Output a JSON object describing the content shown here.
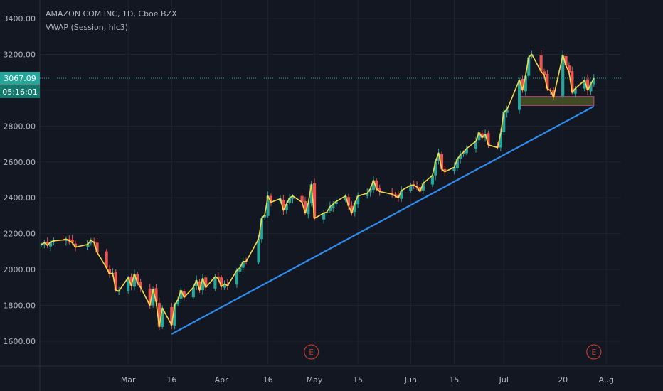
{
  "colors": {
    "background": "#131722",
    "grid": "#1f2330",
    "axis_text": "#b2b5be",
    "up": "#26a69a",
    "down": "#ef5350",
    "vwap": "#f5d94c",
    "trendline": "#2e8ef0",
    "earnings": "#c0392b",
    "price_line": "#26a69a",
    "box_border": "#b0457a",
    "box_fill": "rgba(120,140,40,0.45)"
  },
  "legend": {
    "symbol": "AMAZON COM INC, 1D, Cboe BZX",
    "indicator": "VWAP (Session, hlc3)"
  },
  "price_tag": {
    "value": "3067.09",
    "countdown": "05:16:01"
  },
  "earnings_marker": {
    "label": "E",
    "dates": [
      "2020-04-30",
      "2020-07-30"
    ]
  },
  "chart_data": {
    "type": "candlestick",
    "title": "AMAZON COM INC, 1D, Cboe BZX",
    "indicator": "VWAP (Session, hlc3)",
    "ylim": [
      1500,
      3450
    ],
    "xlim": [
      "2020-02-03",
      "2020-08-05"
    ],
    "grid": true,
    "y_ticks": [
      "1600.00",
      "1800.00",
      "2000.00",
      "2200.00",
      "2400.00",
      "2600.00",
      "2800.00",
      "3000.00",
      "3200.00",
      "3400.00"
    ],
    "x_ticks": [
      {
        "label": "Mar",
        "date": "2020-03-02"
      },
      {
        "label": "16",
        "date": "2020-03-16"
      },
      {
        "label": "Apr",
        "date": "2020-04-01"
      },
      {
        "label": "16",
        "date": "2020-04-16"
      },
      {
        "label": "May",
        "date": "2020-05-01"
      },
      {
        "label": "15",
        "date": "2020-05-15"
      },
      {
        "label": "Jun",
        "date": "2020-06-01"
      },
      {
        "label": "15",
        "date": "2020-06-15"
      },
      {
        "label": "Jul",
        "date": "2020-07-01"
      },
      {
        "label": "20",
        "date": "2020-07-20"
      },
      {
        "label": "Aug",
        "date": "2020-08-03"
      }
    ],
    "closes": [
      [
        "2020-02-03",
        2140
      ],
      [
        "2020-02-04",
        2150
      ],
      [
        "2020-02-05",
        2135
      ],
      [
        "2020-02-06",
        2155
      ],
      [
        "2020-02-07",
        2160
      ],
      [
        "2020-02-10",
        2165
      ],
      [
        "2020-02-11",
        2170
      ],
      [
        "2020-02-12",
        2160
      ],
      [
        "2020-02-13",
        2150
      ],
      [
        "2020-02-14",
        2125
      ],
      [
        "2020-02-18",
        2140
      ],
      [
        "2020-02-19",
        2165
      ],
      [
        "2020-02-20",
        2150
      ],
      [
        "2020-02-21",
        2095
      ],
      [
        "2020-02-24",
        2010
      ],
      [
        "2020-02-25",
        1975
      ],
      [
        "2020-02-26",
        1980
      ],
      [
        "2020-02-27",
        1885
      ],
      [
        "2020-02-28",
        1880
      ],
      [
        "2020-03-02",
        1955
      ],
      [
        "2020-03-03",
        1910
      ],
      [
        "2020-03-04",
        1975
      ],
      [
        "2020-03-05",
        1925
      ],
      [
        "2020-03-06",
        1900
      ],
      [
        "2020-03-09",
        1800
      ],
      [
        "2020-03-10",
        1890
      ],
      [
        "2020-03-11",
        1820
      ],
      [
        "2020-03-12",
        1680
      ],
      [
        "2020-03-13",
        1785
      ],
      [
        "2020-03-16",
        1690
      ],
      [
        "2020-03-17",
        1805
      ],
      [
        "2020-03-18",
        1830
      ],
      [
        "2020-03-19",
        1885
      ],
      [
        "2020-03-20",
        1845
      ],
      [
        "2020-03-23",
        1900
      ],
      [
        "2020-03-24",
        1940
      ],
      [
        "2020-03-25",
        1885
      ],
      [
        "2020-03-26",
        1950
      ],
      [
        "2020-03-27",
        1900
      ],
      [
        "2020-03-30",
        1960
      ],
      [
        "2020-03-31",
        1950
      ],
      [
        "2020-04-01",
        1905
      ],
      [
        "2020-04-02",
        1920
      ],
      [
        "2020-04-03",
        1910
      ],
      [
        "2020-04-06",
        1995
      ],
      [
        "2020-04-07",
        2010
      ],
      [
        "2020-04-08",
        2045
      ],
      [
        "2020-04-09",
        2045
      ],
      [
        "2020-04-13",
        2170
      ],
      [
        "2020-04-14",
        2285
      ],
      [
        "2020-04-15",
        2305
      ],
      [
        "2020-04-16",
        2410
      ],
      [
        "2020-04-17",
        2375
      ],
      [
        "2020-04-20",
        2395
      ],
      [
        "2020-04-21",
        2330
      ],
      [
        "2020-04-22",
        2365
      ],
      [
        "2020-04-23",
        2400
      ],
      [
        "2020-04-24",
        2410
      ],
      [
        "2020-04-27",
        2375
      ],
      [
        "2020-04-28",
        2315
      ],
      [
        "2020-04-29",
        2370
      ],
      [
        "2020-04-30",
        2475
      ],
      [
        "2020-05-01",
        2285
      ],
      [
        "2020-05-04",
        2315
      ],
      [
        "2020-05-05",
        2320
      ],
      [
        "2020-05-06",
        2350
      ],
      [
        "2020-05-07",
        2365
      ],
      [
        "2020-05-08",
        2380
      ],
      [
        "2020-05-11",
        2410
      ],
      [
        "2020-05-12",
        2355
      ],
      [
        "2020-05-13",
        2315
      ],
      [
        "2020-05-14",
        2370
      ],
      [
        "2020-05-15",
        2410
      ],
      [
        "2020-05-18",
        2425
      ],
      [
        "2020-05-19",
        2450
      ],
      [
        "2020-05-20",
        2497
      ],
      [
        "2020-05-21",
        2450
      ],
      [
        "2020-05-22",
        2435
      ],
      [
        "2020-05-26",
        2420
      ],
      [
        "2020-05-27",
        2410
      ],
      [
        "2020-05-28",
        2400
      ],
      [
        "2020-05-29",
        2440
      ],
      [
        "2020-06-01",
        2470
      ],
      [
        "2020-06-02",
        2470
      ],
      [
        "2020-06-03",
        2460
      ],
      [
        "2020-06-04",
        2435
      ],
      [
        "2020-06-05",
        2480
      ],
      [
        "2020-06-08",
        2525
      ],
      [
        "2020-06-09",
        2600
      ],
      [
        "2020-06-10",
        2650
      ],
      [
        "2020-06-11",
        2560
      ],
      [
        "2020-06-12",
        2545
      ],
      [
        "2020-06-15",
        2570
      ],
      [
        "2020-06-16",
        2615
      ],
      [
        "2020-06-17",
        2640
      ],
      [
        "2020-06-18",
        2655
      ],
      [
        "2020-06-19",
        2675
      ],
      [
        "2020-06-22",
        2715
      ],
      [
        "2020-06-23",
        2765
      ],
      [
        "2020-06-24",
        2735
      ],
      [
        "2020-06-25",
        2755
      ],
      [
        "2020-06-26",
        2695
      ],
      [
        "2020-06-29",
        2680
      ],
      [
        "2020-06-30",
        2760
      ],
      [
        "2020-07-01",
        2880
      ],
      [
        "2020-07-02",
        2890
      ],
      [
        "2020-07-06",
        3057
      ],
      [
        "2020-07-07",
        3000
      ],
      [
        "2020-07-08",
        3080
      ],
      [
        "2020-07-09",
        3183
      ],
      [
        "2020-07-10",
        3200
      ],
      [
        "2020-07-13",
        3105
      ],
      [
        "2020-07-14",
        3085
      ],
      [
        "2020-07-15",
        3008
      ],
      [
        "2020-07-16",
        2999
      ],
      [
        "2020-07-17",
        2961
      ],
      [
        "2020-07-20",
        3196
      ],
      [
        "2020-07-21",
        3138
      ],
      [
        "2020-07-22",
        3100
      ],
      [
        "2020-07-23",
        2987
      ],
      [
        "2020-07-24",
        3009
      ],
      [
        "2020-07-27",
        3055
      ],
      [
        "2020-07-28",
        3000
      ],
      [
        "2020-07-29",
        3033
      ],
      [
        "2020-07-30",
        3067
      ]
    ],
    "trendline": [
      [
        "2020-03-16",
        1640
      ],
      [
        "2020-07-30",
        2910
      ]
    ],
    "support_zone": {
      "x": [
        "2020-07-06",
        "2020-07-30"
      ],
      "y": [
        2915,
        2965
      ]
    },
    "last_price": 3067.09
  }
}
